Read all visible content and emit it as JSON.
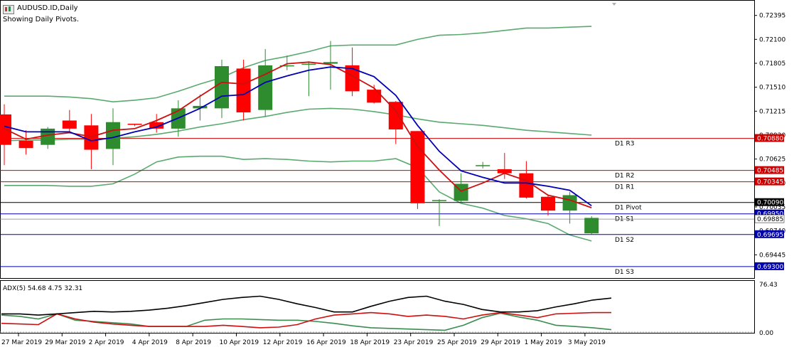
{
  "header": {
    "symbol": "AUDUSD.ID,Daily",
    "subtitle": "Showing Daily Pivots."
  },
  "chart_data": {
    "type": "candlestick",
    "title": "AUDUSD.ID,Daily",
    "price_axis": {
      "ticks": [
        0.72395,
        0.721,
        0.71805,
        0.7151,
        0.71215,
        0.7092,
        0.70625,
        0.7033,
        0.70035,
        0.6974,
        0.69445
      ],
      "tick_labels": [
        "0.72395",
        "0.72100",
        "0.71805",
        "0.71510",
        "0.71215",
        "0.70920",
        "0.70625",
        "0.70330",
        "0.70035",
        "0.69740",
        "0.69445"
      ],
      "range": [
        0.6915,
        0.7255
      ]
    },
    "x_labels": [
      "27 Mar 2019",
      "29 Mar 2019",
      "2 Apr 2019",
      "4 Apr 2019",
      "8 Apr 2019",
      "10 Apr 2019",
      "12 Apr 2019",
      "16 Apr 2019",
      "18 Apr 2019",
      "23 Apr 2019",
      "25 Apr 2019",
      "29 Apr 2019",
      "1 May 2019",
      "3 May 2019"
    ],
    "candles": [
      {
        "o": 0.71175,
        "h": 0.713,
        "l": 0.7055,
        "c": 0.708
      },
      {
        "o": 0.7085,
        "h": 0.7098,
        "l": 0.7068,
        "c": 0.7076
      },
      {
        "o": 0.708,
        "h": 0.7102,
        "l": 0.7075,
        "c": 0.71
      },
      {
        "o": 0.711,
        "h": 0.7123,
        "l": 0.7095,
        "c": 0.71
      },
      {
        "o": 0.7104,
        "h": 0.7118,
        "l": 0.705,
        "c": 0.7074
      },
      {
        "o": 0.7075,
        "h": 0.7125,
        "l": 0.7055,
        "c": 0.7108
      },
      {
        "o": 0.7106,
        "h": 0.7106,
        "l": 0.7103,
        "c": 0.7105
      },
      {
        "o": 0.7108,
        "h": 0.7118,
        "l": 0.7095,
        "c": 0.71
      },
      {
        "o": 0.71,
        "h": 0.7135,
        "l": 0.709,
        "c": 0.7125
      },
      {
        "o": 0.7125,
        "h": 0.7142,
        "l": 0.711,
        "c": 0.7128
      },
      {
        "o": 0.7125,
        "h": 0.7185,
        "l": 0.7113,
        "c": 0.7177
      },
      {
        "o": 0.7174,
        "h": 0.7185,
        "l": 0.711,
        "c": 0.712
      },
      {
        "o": 0.7123,
        "h": 0.7198,
        "l": 0.7115,
        "c": 0.7178
      },
      {
        "o": 0.7178,
        "h": 0.719,
        "l": 0.7172,
        "c": 0.7178
      },
      {
        "o": 0.718,
        "h": 0.7183,
        "l": 0.714,
        "c": 0.718
      },
      {
        "o": 0.718,
        "h": 0.7208,
        "l": 0.7148,
        "c": 0.7182
      },
      {
        "o": 0.7178,
        "h": 0.72,
        "l": 0.714,
        "c": 0.7146
      },
      {
        "o": 0.7148,
        "h": 0.7154,
        "l": 0.7131,
        "c": 0.7132
      },
      {
        "o": 0.7133,
        "h": 0.7134,
        "l": 0.7081,
        "c": 0.7099
      },
      {
        "o": 0.7097,
        "h": 0.7097,
        "l": 0.7001,
        "c": 0.7008
      },
      {
        "o": 0.7011,
        "h": 0.7013,
        "l": 0.698,
        "c": 0.7012
      },
      {
        "o": 0.7011,
        "h": 0.7045,
        "l": 0.7009,
        "c": 0.7032
      },
      {
        "o": 0.7055,
        "h": 0.7059,
        "l": 0.7051,
        "c": 0.7055
      },
      {
        "o": 0.705,
        "h": 0.707,
        "l": 0.7038,
        "c": 0.7045
      },
      {
        "o": 0.7045,
        "h": 0.706,
        "l": 0.7014,
        "c": 0.7015
      },
      {
        "o": 0.7016,
        "h": 0.7019,
        "l": 0.6993,
        "c": 0.6999
      },
      {
        "o": 0.6999,
        "h": 0.7022,
        "l": 0.6983,
        "c": 0.7018
      },
      {
        "o": 0.6971,
        "h": 0.6992,
        "l": 0.697,
        "c": 0.699
      }
    ],
    "moving_average_red": [
      0.71,
      0.7087,
      0.7092,
      0.7095,
      0.709,
      0.7098,
      0.71,
      0.711,
      0.7122,
      0.714,
      0.7157,
      0.7155,
      0.7167,
      0.718,
      0.7182,
      0.7179,
      0.7165,
      0.715,
      0.7122,
      0.7078,
      0.7049,
      0.7023,
      0.7033,
      0.7045,
      0.7036,
      0.7018,
      0.7012,
      0.70025
    ],
    "moving_average_blue": [
      0.7103,
      0.7096,
      0.7096,
      0.7096,
      0.7085,
      0.7089,
      0.7096,
      0.7102,
      0.7113,
      0.7125,
      0.714,
      0.7142,
      0.7157,
      0.7165,
      0.7172,
      0.7176,
      0.7174,
      0.7164,
      0.7141,
      0.7104,
      0.7072,
      0.7048,
      0.704,
      0.7033,
      0.7033,
      0.7029,
      0.7024,
      0.7005
    ],
    "bollinger_upper": [
      0.714,
      0.714,
      0.714,
      0.7139,
      0.7137,
      0.7133,
      0.7135,
      0.7138,
      0.7146,
      0.7155,
      0.7163,
      0.7175,
      0.7184,
      0.7189,
      0.7195,
      0.7202,
      0.7203,
      0.7203,
      0.7203,
      0.721,
      0.7215,
      0.7216,
      0.7218,
      0.7221,
      0.7224,
      0.7224,
      0.7225,
      0.7226
    ],
    "bollinger_middle": [
      0.7085,
      0.7086,
      0.7086,
      0.7087,
      0.7087,
      0.7088,
      0.709,
      0.7093,
      0.7097,
      0.7102,
      0.7106,
      0.7111,
      0.7115,
      0.712,
      0.7124,
      0.7125,
      0.7124,
      0.7121,
      0.7117,
      0.7112,
      0.7108,
      0.7106,
      0.7104,
      0.7101,
      0.7098,
      0.7096,
      0.7094,
      0.7092
    ],
    "bollinger_lower": [
      0.703,
      0.703,
      0.703,
      0.7029,
      0.7029,
      0.7032,
      0.7044,
      0.7059,
      0.7065,
      0.7066,
      0.7066,
      0.7062,
      0.7063,
      0.7062,
      0.706,
      0.7059,
      0.706,
      0.706,
      0.7063,
      0.7052,
      0.7022,
      0.7008,
      0.7002,
      0.6993,
      0.6989,
      0.6983,
      0.6969,
      0.69615
    ],
    "pivots": [
      {
        "label": "D1 R3",
        "value": 0.7088,
        "value_text": "0.70880",
        "color": "#cc0000"
      },
      {
        "label": "D1 R2",
        "value": 0.70485,
        "value_text": "0.70485",
        "color": "#cc0000"
      },
      {
        "label": "D1 R1",
        "value": 0.70345,
        "value_text": "0.70345",
        "color": "#cc0000"
      },
      {
        "label": "D1 Pivot",
        "value": 0.7009,
        "value_text": "0.70090",
        "color": "#000000"
      },
      {
        "label": "D1 S1",
        "value": 0.6995,
        "value_text": "0.69950",
        "color": "#0000aa"
      },
      {
        "label": "D1 S2",
        "value": 0.69695,
        "value_text": "0.69695",
        "color": "#0000aa"
      },
      {
        "label": "D1 S3",
        "value": 0.693,
        "value_text": "0.69300",
        "color": "#0000aa"
      }
    ],
    "current_price": {
      "value": 0.69885,
      "value_text": "0.69885"
    },
    "adx": {
      "label": "ADX(5) 54.68 4.75 32.31",
      "ticks": [
        {
          "value": 76.43,
          "text": "76.43"
        },
        {
          "value": 0,
          "text": "0.00"
        }
      ],
      "range": [
        0,
        80
      ],
      "adx_line": [
        30,
        30,
        28,
        30,
        32,
        34,
        33,
        34,
        36,
        39,
        43,
        48,
        53,
        56,
        58,
        53,
        46,
        40,
        33,
        33,
        42,
        50,
        56,
        58,
        50,
        45,
        37,
        33,
        33,
        35,
        41,
        46,
        52,
        55
      ],
      "plus_di": [
        15,
        14,
        13,
        30,
        22,
        17,
        14,
        12,
        10,
        10,
        10,
        10,
        12,
        10,
        8,
        9,
        13,
        22,
        28,
        30,
        32,
        30,
        26,
        28,
        26,
        22,
        28,
        32,
        28,
        24,
        30,
        31,
        32,
        32
      ],
      "minus_di": [
        28,
        26,
        22,
        30,
        20,
        18,
        16,
        14,
        10,
        10,
        10,
        20,
        22,
        22,
        21,
        20,
        20,
        18,
        15,
        11,
        8,
        7,
        6,
        5,
        4,
        12,
        24,
        31,
        25,
        20,
        12,
        10,
        8,
        5
      ]
    },
    "colors": {
      "bull": "#2e8b2e",
      "bear": "#ff0000",
      "ma_red": "#cc1010",
      "ma_blue": "#0000b4",
      "bands": "#5aaa70",
      "adx": "#000000",
      "plus_di": "#3c8c50",
      "minus_di": "#cc1010"
    }
  }
}
